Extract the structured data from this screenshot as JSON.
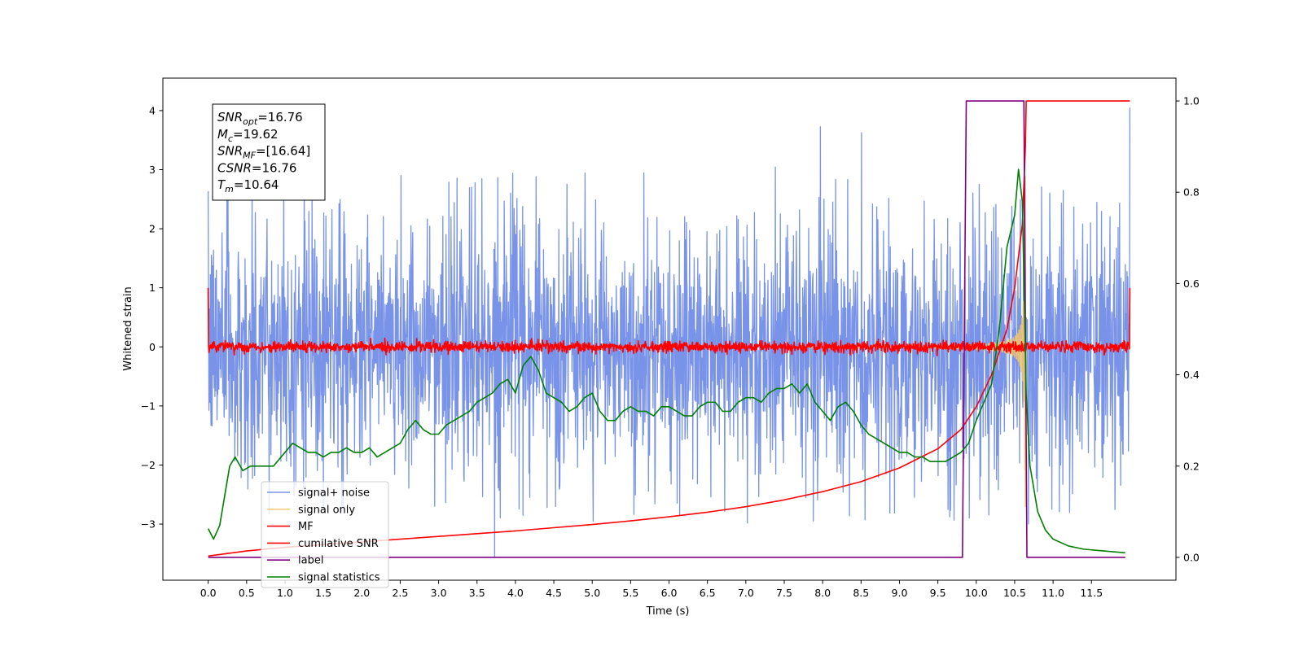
{
  "chart_data": {
    "type": "line",
    "xlabel": "Time (s)",
    "ylabel": "Whitened strain",
    "x_ticks": [
      "0.0",
      "0.5",
      "1.0",
      "1.5",
      "2.0",
      "2.5",
      "3.0",
      "3.5",
      "4.0",
      "4.5",
      "5.0",
      "5.5",
      "6.0",
      "6.5",
      "7.0",
      "7.5",
      "8.0",
      "8.5",
      "9.0",
      "9.5",
      "10.0",
      "10.5",
      "11.0",
      "11.5"
    ],
    "y_left_ticks": [
      "−3",
      "−2",
      "−1",
      "0",
      "1",
      "2",
      "3",
      "4"
    ],
    "y_right_ticks": [
      "0.0",
      "0.2",
      "0.4",
      "0.6",
      "0.8",
      "1.0"
    ],
    "xlim": [
      -0.59,
      12.6
    ],
    "ylim_left": [
      -3.95,
      4.55
    ],
    "ylim_right": [
      -0.05,
      1.05
    ],
    "grid": false,
    "legend_position": "lower-left",
    "annotation": {
      "lines": [
        {
          "sym": "SNR",
          "sub": "opt",
          "val": "=16.76"
        },
        {
          "sym": "M",
          "sub": "c",
          "val": "=19.62"
        },
        {
          "sym": "SNR",
          "sub": "MF",
          "val": "=[16.64]"
        },
        {
          "sym": "CSNR",
          "sub": "",
          "val": "=16.76"
        },
        {
          "sym": "T",
          "sub": "m",
          "val": "=10.64"
        }
      ]
    },
    "series": [
      {
        "name": "signal+ noise",
        "color": "#7893e8",
        "axis": "left",
        "kind": "noise",
        "x_range": [
          0.0,
          12.0
        ],
        "range": [
          -3.55,
          4.05
        ]
      },
      {
        "name": "signal only",
        "color": "#f5c66b",
        "axis": "left",
        "kind": "chirp",
        "x_range": [
          0.0,
          10.64
        ],
        "range": [
          -2.7,
          3.0
        ]
      },
      {
        "name": "MF",
        "color": "#ff0000",
        "axis": "left",
        "kind": "mf",
        "x_range": [
          0.0,
          12.0
        ],
        "edge_value": 1.0
      },
      {
        "name": "cumilative SNR",
        "color": "#ff0000",
        "axis": "right",
        "x": [
          0.0,
          0.5,
          1.0,
          1.5,
          2.0,
          2.5,
          3.0,
          3.5,
          4.0,
          4.5,
          5.0,
          5.5,
          6.0,
          6.5,
          7.0,
          7.5,
          8.0,
          8.5,
          9.0,
          9.5,
          9.8,
          10.0,
          10.2,
          10.4,
          10.5,
          10.6,
          10.64,
          10.65,
          12.0
        ],
        "y": [
          0.003,
          0.014,
          0.022,
          0.028,
          0.034,
          0.04,
          0.046,
          0.052,
          0.058,
          0.065,
          0.072,
          0.08,
          0.089,
          0.099,
          0.111,
          0.126,
          0.144,
          0.166,
          0.196,
          0.238,
          0.28,
          0.33,
          0.4,
          0.5,
          0.59,
          0.73,
          0.9,
          1.0,
          1.0
        ]
      },
      {
        "name": "label",
        "color": "#800080",
        "axis": "right",
        "x": [
          0.0,
          9.82,
          9.87,
          10.62,
          10.66,
          11.94
        ],
        "y": [
          0.0,
          0.0,
          1.0,
          1.0,
          0.0,
          0.0
        ]
      },
      {
        "name": "signal statistics",
        "color": "#008000",
        "axis": "right",
        "x": [
          0.0,
          0.07,
          0.15,
          0.22,
          0.28,
          0.35,
          0.45,
          0.55,
          0.7,
          0.85,
          1.0,
          1.1,
          1.2,
          1.3,
          1.4,
          1.5,
          1.6,
          1.7,
          1.8,
          1.9,
          2.0,
          2.1,
          2.2,
          2.3,
          2.4,
          2.5,
          2.6,
          2.7,
          2.8,
          2.9,
          3.0,
          3.1,
          3.2,
          3.3,
          3.4,
          3.5,
          3.6,
          3.7,
          3.8,
          3.9,
          4.0,
          4.05,
          4.1,
          4.2,
          4.3,
          4.4,
          4.5,
          4.6,
          4.7,
          4.8,
          4.9,
          5.0,
          5.1,
          5.2,
          5.3,
          5.4,
          5.5,
          5.6,
          5.7,
          5.8,
          5.9,
          6.0,
          6.1,
          6.2,
          6.3,
          6.4,
          6.5,
          6.6,
          6.7,
          6.8,
          6.9,
          7.0,
          7.1,
          7.2,
          7.3,
          7.4,
          7.5,
          7.6,
          7.7,
          7.8,
          7.9,
          8.0,
          8.1,
          8.2,
          8.3,
          8.4,
          8.5,
          8.6,
          8.7,
          8.8,
          8.9,
          9.0,
          9.1,
          9.2,
          9.3,
          9.4,
          9.5,
          9.6,
          9.7,
          9.8,
          9.9,
          10.0,
          10.1,
          10.2,
          10.3,
          10.4,
          10.5,
          10.55,
          10.6,
          10.65,
          10.7,
          10.8,
          10.9,
          11.0,
          11.2,
          11.4,
          11.6,
          11.8,
          11.94
        ],
        "y": [
          0.063,
          0.04,
          0.07,
          0.14,
          0.2,
          0.22,
          0.19,
          0.2,
          0.2,
          0.2,
          0.23,
          0.25,
          0.24,
          0.23,
          0.23,
          0.22,
          0.23,
          0.23,
          0.24,
          0.23,
          0.23,
          0.24,
          0.22,
          0.23,
          0.24,
          0.25,
          0.28,
          0.3,
          0.28,
          0.27,
          0.27,
          0.29,
          0.3,
          0.31,
          0.32,
          0.34,
          0.35,
          0.36,
          0.38,
          0.39,
          0.36,
          0.39,
          0.42,
          0.44,
          0.41,
          0.36,
          0.35,
          0.34,
          0.32,
          0.33,
          0.35,
          0.36,
          0.32,
          0.3,
          0.3,
          0.32,
          0.33,
          0.32,
          0.32,
          0.31,
          0.33,
          0.33,
          0.32,
          0.31,
          0.31,
          0.33,
          0.34,
          0.34,
          0.32,
          0.32,
          0.34,
          0.35,
          0.35,
          0.34,
          0.36,
          0.37,
          0.37,
          0.38,
          0.36,
          0.38,
          0.34,
          0.32,
          0.3,
          0.33,
          0.34,
          0.32,
          0.29,
          0.27,
          0.26,
          0.25,
          0.24,
          0.23,
          0.23,
          0.22,
          0.22,
          0.21,
          0.21,
          0.21,
          0.22,
          0.23,
          0.25,
          0.3,
          0.34,
          0.38,
          0.5,
          0.68,
          0.75,
          0.85,
          0.78,
          0.36,
          0.2,
          0.1,
          0.06,
          0.04,
          0.025,
          0.018,
          0.015,
          0.012,
          0.01
        ]
      }
    ]
  }
}
